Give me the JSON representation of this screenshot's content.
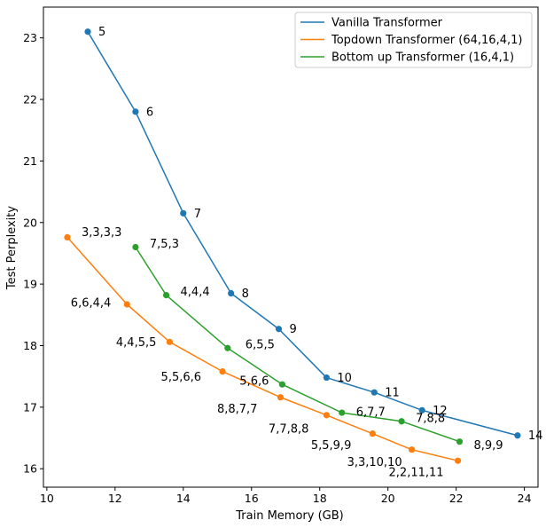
{
  "chart_data": {
    "type": "line",
    "title": "",
    "xlabel": "Train Memory (GB)",
    "ylabel": "Test Perplexity",
    "xlim": [
      9.9,
      24.4
    ],
    "ylim": [
      15.7,
      23.5
    ],
    "xticks": [
      10,
      12,
      14,
      16,
      18,
      20,
      22,
      24
    ],
    "yticks": [
      16,
      17,
      18,
      19,
      20,
      21,
      22,
      23
    ],
    "grid": false,
    "legend_position": "top-right",
    "series": [
      {
        "name": "Vanilla Transformer",
        "color": "#1f77b4",
        "points": [
          {
            "x": 11.2,
            "y": 23.1,
            "label": "5"
          },
          {
            "x": 12.6,
            "y": 21.8,
            "label": "6"
          },
          {
            "x": 14.0,
            "y": 20.15,
            "label": "7"
          },
          {
            "x": 15.4,
            "y": 18.85,
            "label": "8"
          },
          {
            "x": 16.8,
            "y": 18.27,
            "label": "9"
          },
          {
            "x": 18.2,
            "y": 17.48,
            "label": "10"
          },
          {
            "x": 19.6,
            "y": 17.24,
            "label": "11"
          },
          {
            "x": 21.0,
            "y": 16.95,
            "label": "12"
          },
          {
            "x": 23.8,
            "y": 16.54,
            "label": "14"
          }
        ]
      },
      {
        "name": "Topdown Transformer (64,16,4,1)",
        "color": "#ff7f0e",
        "points": [
          {
            "x": 10.6,
            "y": 19.76,
            "label": "3,3,3,3"
          },
          {
            "x": 12.35,
            "y": 18.67,
            "label": "6,6,4,4"
          },
          {
            "x": 13.6,
            "y": 18.06,
            "label": "4,4,5,5"
          },
          {
            "x": 15.15,
            "y": 17.58,
            "label": "5,5,6,6"
          },
          {
            "x": 16.85,
            "y": 17.16,
            "label": "8,8,7,7"
          },
          {
            "x": 18.2,
            "y": 16.87,
            "label": "7,7,8,8"
          },
          {
            "x": 19.55,
            "y": 16.57,
            "label": "5,5,9,9"
          },
          {
            "x": 20.7,
            "y": 16.31,
            "label": "3,3,10,10"
          },
          {
            "x": 22.05,
            "y": 16.13,
            "label": "2,2,11,11"
          }
        ]
      },
      {
        "name": "Bottom up Transformer (16,4,1)",
        "color": "#2ca02c",
        "points": [
          {
            "x": 12.6,
            "y": 19.6,
            "label": "7,5,3"
          },
          {
            "x": 13.5,
            "y": 18.82,
            "label": "4,4,4"
          },
          {
            "x": 15.3,
            "y": 17.96,
            "label": "6,5,5"
          },
          {
            "x": 16.9,
            "y": 17.37,
            "label": "5,6,6"
          },
          {
            "x": 18.65,
            "y": 16.91,
            "label": "6,7,7"
          },
          {
            "x": 20.4,
            "y": 16.77,
            "label": "7,8,8"
          },
          {
            "x": 22.1,
            "y": 16.44,
            "label": "8,9,9"
          }
        ]
      }
    ]
  }
}
